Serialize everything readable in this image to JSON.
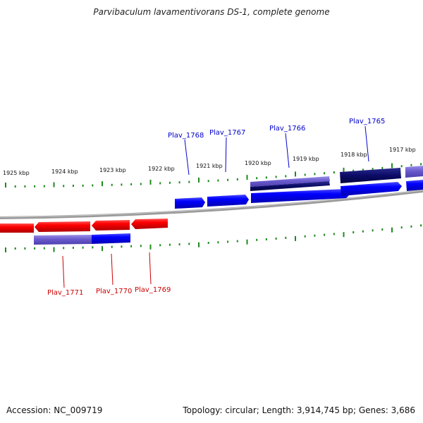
{
  "title": "Parvibaculum lavamentivorans DS-1, complete genome",
  "footer": {
    "accession": "Accession: NC_009719",
    "topology": "Topology: circular; Length: 3,914,745 bp; Genes: 3,686"
  },
  "scale": {
    "kbp_labels": [
      "1925 kbp",
      "1924 kbp",
      "1923 kbp",
      "1922 kbp",
      "1921 kbp",
      "1920 kbp",
      "1919 kbp",
      "1918 kbp",
      "1917 kbp"
    ]
  },
  "colors": {
    "forward_gene": "#0000ff",
    "reverse_gene": "#ff0000",
    "pale_feature": "#6a5acd",
    "dark_feature": "#0b0b66",
    "tick": "#1e8a1e",
    "backbone": "#888888",
    "forward_label": "#0000cc",
    "reverse_label": "#cc0000"
  },
  "labels": {
    "forward": [
      "Plav_1768",
      "Plav_1767",
      "Plav_1766",
      "Plav_1765"
    ],
    "reverse": [
      "Plav_1771",
      "Plav_1770",
      "Plav_1769"
    ]
  }
}
